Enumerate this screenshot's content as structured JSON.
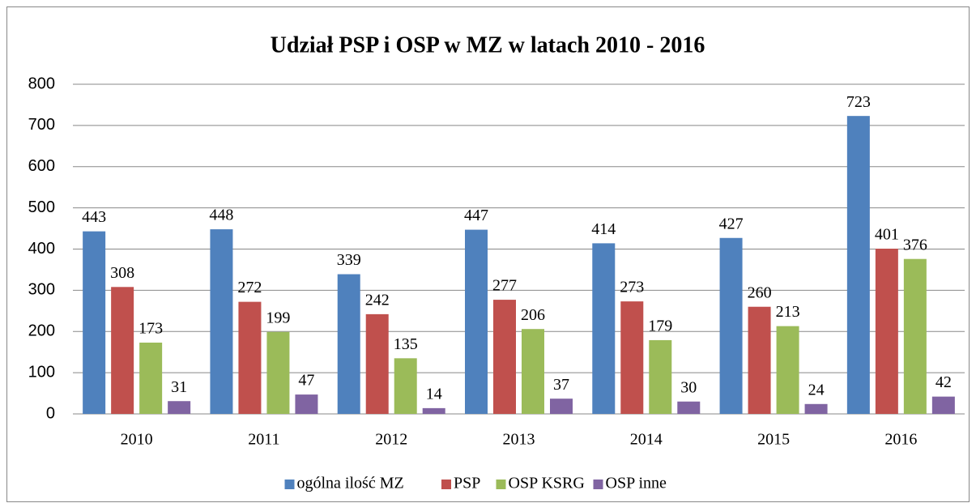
{
  "chart_data": {
    "type": "bar",
    "title": "Udział PSP i OSP w MZ w latach 2010 - 2016",
    "categories": [
      "2010",
      "2011",
      "2012",
      "2013",
      "2014",
      "2015",
      "2016"
    ],
    "series": [
      {
        "name": "ogólna ilość MZ",
        "color": "#4f81bd",
        "values": [
          443,
          448,
          339,
          447,
          414,
          427,
          723
        ]
      },
      {
        "name": "PSP",
        "color": "#c0504d",
        "values": [
          308,
          272,
          242,
          277,
          273,
          260,
          401
        ]
      },
      {
        "name": "OSP KSRG",
        "color": "#9bbb59",
        "values": [
          173,
          199,
          135,
          206,
          179,
          213,
          376
        ]
      },
      {
        "name": "OSP inne",
        "color": "#8064a2",
        "values": [
          31,
          47,
          14,
          37,
          30,
          24,
          42
        ]
      }
    ],
    "ylim": [
      0,
      800
    ],
    "yticks": [
      0,
      100,
      200,
      300,
      400,
      500,
      600,
      700,
      800
    ],
    "grid": true,
    "legend": "bottom"
  }
}
